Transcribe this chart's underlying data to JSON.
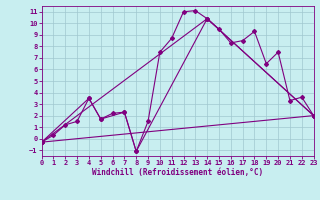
{
  "xlabel": "Windchill (Refroidissement éolien,°C)",
  "bg_color": "#c8eef0",
  "grid_color": "#a0c8d0",
  "line_color": "#800080",
  "xlim": [
    0,
    23
  ],
  "ylim": [
    -1.5,
    11.5
  ],
  "xticks": [
    0,
    1,
    2,
    3,
    4,
    5,
    6,
    7,
    8,
    9,
    10,
    11,
    12,
    13,
    14,
    15,
    16,
    17,
    18,
    19,
    20,
    21,
    22,
    23
  ],
  "yticks": [
    -1,
    0,
    1,
    2,
    3,
    4,
    5,
    6,
    7,
    8,
    9,
    10,
    11
  ],
  "series1_x": [
    0,
    1,
    2,
    3,
    4,
    5,
    6,
    7,
    8,
    9,
    10,
    11,
    12,
    13,
    14,
    15,
    16,
    17,
    18,
    19,
    20,
    21,
    22,
    23
  ],
  "series1_y": [
    -0.3,
    0.3,
    1.2,
    1.5,
    3.5,
    1.7,
    2.2,
    2.3,
    -1.1,
    1.5,
    7.5,
    8.7,
    11.0,
    11.1,
    10.4,
    9.5,
    8.3,
    8.5,
    9.3,
    6.5,
    7.5,
    3.3,
    3.6,
    2.0
  ],
  "series2_x": [
    0,
    4,
    5,
    7,
    8,
    14,
    23
  ],
  "series2_y": [
    -0.3,
    3.5,
    1.7,
    2.3,
    -1.1,
    10.4,
    2.0
  ],
  "series3_x": [
    0,
    23
  ],
  "series3_y": [
    -0.3,
    2.0
  ],
  "series4_x": [
    0,
    14,
    23
  ],
  "series4_y": [
    -0.3,
    10.4,
    2.0
  ],
  "marker": "D",
  "markersize": 2,
  "linewidth": 0.8,
  "tick_fontsize": 5,
  "xlabel_fontsize": 5.5
}
